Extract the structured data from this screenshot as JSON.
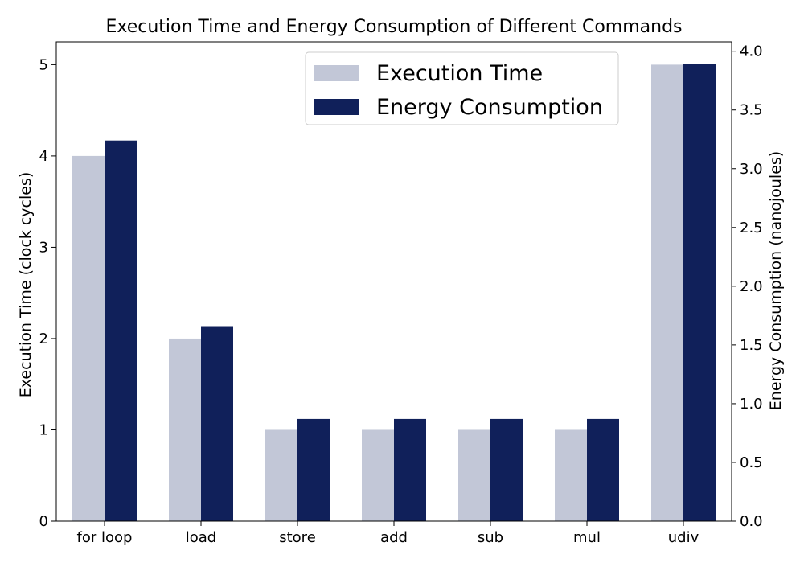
{
  "chart_data": {
    "type": "bar",
    "title": "Execution Time and Energy Consumption of Different Commands",
    "categories": [
      "for loop",
      "load",
      "store",
      "add",
      "sub",
      "mul",
      "udiv"
    ],
    "series": [
      {
        "name": "Execution Time",
        "axis": "left",
        "color": "#c2c7d7",
        "values": [
          4,
          2,
          1,
          1,
          1,
          1,
          5
        ]
      },
      {
        "name": "Energy Consumption",
        "axis": "right",
        "color": "#10205a",
        "values": [
          3.24,
          1.66,
          0.87,
          0.87,
          0.87,
          0.87,
          3.89
        ]
      }
    ],
    "ylabel": "Execution Time (clock cycles)",
    "ylabel_right": "Energy Consumption (nanojoules)",
    "ylim": [
      0,
      5.25
    ],
    "ylim_right": [
      0,
      4.08
    ],
    "yticks": [
      0,
      1,
      2,
      3,
      4,
      5
    ],
    "yticks_right": [
      "0.0",
      "0.5",
      "1.0",
      "1.5",
      "2.0",
      "2.5",
      "3.0",
      "3.5",
      "4.0"
    ],
    "grid": false,
    "legend_position": "top-right"
  }
}
